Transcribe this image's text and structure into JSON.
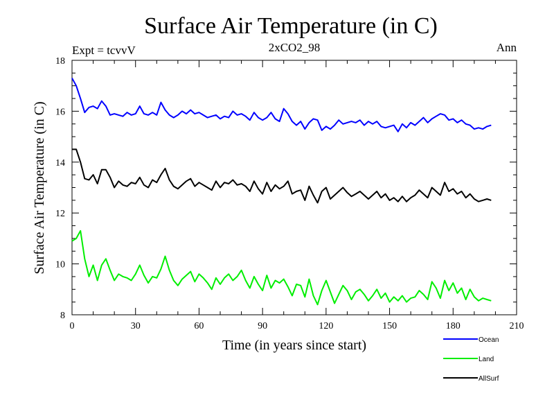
{
  "header": {
    "title": "Surface Air Temperature (in C)",
    "left": "Expt = tcvvV",
    "center": "2xCO2_98",
    "right": "Ann"
  },
  "chart_data": {
    "type": "line",
    "title": "Surface Air Temperature (in C)",
    "xlabel": "Time (in years since start)",
    "ylabel": "Surface Air Temperature (in C)",
    "xlim": [
      0,
      210
    ],
    "ylim": [
      8,
      18
    ],
    "xticks": [
      "0",
      "30",
      "60",
      "90",
      "120",
      "150",
      "180",
      "210"
    ],
    "yticks": [
      "8",
      "10",
      "12",
      "14",
      "16",
      "18"
    ],
    "grid": false,
    "legend_position": "bottom-right",
    "series": [
      {
        "name": "Ocean",
        "color": "#0000ff",
        "x": [
          0,
          2,
          4,
          6,
          8,
          10,
          12,
          14,
          16,
          18,
          20,
          22,
          24,
          26,
          28,
          30,
          32,
          34,
          36,
          38,
          40,
          42,
          44,
          46,
          48,
          50,
          52,
          54,
          56,
          58,
          60,
          62,
          64,
          66,
          68,
          70,
          72,
          74,
          76,
          78,
          80,
          82,
          84,
          86,
          88,
          90,
          92,
          94,
          96,
          98,
          100,
          102,
          104,
          106,
          108,
          110,
          112,
          114,
          116,
          118,
          120,
          122,
          124,
          126,
          128,
          130,
          132,
          134,
          136,
          138,
          140,
          142,
          144,
          146,
          148,
          150,
          152,
          154,
          156,
          158,
          160,
          162,
          164,
          166,
          168,
          170,
          172,
          174,
          176,
          178,
          180,
          182,
          184,
          186,
          188,
          190,
          192,
          194,
          196,
          198
        ],
        "y": [
          17.3,
          17.0,
          16.5,
          15.95,
          16.15,
          16.2,
          16.1,
          16.4,
          16.2,
          15.85,
          15.9,
          15.85,
          15.8,
          15.95,
          15.85,
          15.9,
          16.2,
          15.9,
          15.85,
          15.95,
          15.85,
          16.35,
          16.05,
          15.85,
          15.75,
          15.85,
          16.0,
          15.9,
          16.05,
          15.9,
          15.95,
          15.85,
          15.75,
          15.8,
          15.85,
          15.7,
          15.8,
          15.75,
          16.0,
          15.85,
          15.9,
          15.8,
          15.65,
          15.95,
          15.75,
          15.65,
          15.75,
          15.95,
          15.7,
          15.6,
          16.1,
          15.9,
          15.6,
          15.45,
          15.6,
          15.3,
          15.55,
          15.7,
          15.65,
          15.25,
          15.4,
          15.3,
          15.45,
          15.65,
          15.5,
          15.55,
          15.6,
          15.55,
          15.65,
          15.45,
          15.6,
          15.5,
          15.6,
          15.4,
          15.35,
          15.4,
          15.45,
          15.2,
          15.5,
          15.35,
          15.55,
          15.45,
          15.6,
          15.75,
          15.55,
          15.7,
          15.8,
          15.9,
          15.85,
          15.65,
          15.7,
          15.55,
          15.65,
          15.5,
          15.45,
          15.3,
          15.35,
          15.3,
          15.4,
          15.45
        ]
      },
      {
        "name": "Land",
        "color": "#00ee00",
        "x": [
          0,
          2,
          4,
          6,
          8,
          10,
          12,
          14,
          16,
          18,
          20,
          22,
          24,
          26,
          28,
          30,
          32,
          34,
          36,
          38,
          40,
          42,
          44,
          46,
          48,
          50,
          52,
          54,
          56,
          58,
          60,
          62,
          64,
          66,
          68,
          70,
          72,
          74,
          76,
          78,
          80,
          82,
          84,
          86,
          88,
          90,
          92,
          94,
          96,
          98,
          100,
          102,
          104,
          106,
          108,
          110,
          112,
          114,
          116,
          118,
          120,
          122,
          124,
          126,
          128,
          130,
          132,
          134,
          136,
          138,
          140,
          142,
          144,
          146,
          148,
          150,
          152,
          154,
          156,
          158,
          160,
          162,
          164,
          166,
          168,
          170,
          172,
          174,
          176,
          178,
          180,
          182,
          184,
          186,
          188,
          190,
          192,
          194,
          196,
          198
        ],
        "y": [
          10.9,
          11.0,
          11.3,
          10.2,
          9.5,
          9.95,
          9.35,
          9.95,
          10.2,
          9.75,
          9.35,
          9.6,
          9.5,
          9.45,
          9.35,
          9.6,
          9.95,
          9.55,
          9.25,
          9.5,
          9.45,
          9.8,
          10.3,
          9.75,
          9.35,
          9.15,
          9.4,
          9.55,
          9.7,
          9.3,
          9.6,
          9.45,
          9.25,
          9.0,
          9.45,
          9.2,
          9.45,
          9.6,
          9.35,
          9.5,
          9.75,
          9.35,
          9.05,
          9.5,
          9.2,
          8.95,
          9.55,
          9.05,
          9.35,
          9.25,
          9.4,
          9.1,
          8.75,
          9.2,
          9.15,
          8.7,
          9.4,
          8.75,
          8.4,
          8.95,
          9.35,
          8.9,
          8.45,
          8.8,
          9.15,
          8.95,
          8.6,
          8.9,
          9.0,
          8.8,
          8.55,
          8.75,
          9.0,
          8.65,
          8.85,
          8.5,
          8.7,
          8.55,
          8.75,
          8.5,
          8.65,
          8.7,
          8.95,
          8.8,
          8.6,
          9.3,
          9.05,
          8.65,
          9.35,
          8.95,
          9.25,
          8.85,
          9.05,
          8.6,
          9.0,
          8.7,
          8.55,
          8.65,
          8.6,
          8.55
        ]
      },
      {
        "name": "AllSurf",
        "color": "#000000",
        "x": [
          0,
          2,
          4,
          6,
          8,
          10,
          12,
          14,
          16,
          18,
          20,
          22,
          24,
          26,
          28,
          30,
          32,
          34,
          36,
          38,
          40,
          42,
          44,
          46,
          48,
          50,
          52,
          54,
          56,
          58,
          60,
          62,
          64,
          66,
          68,
          70,
          72,
          74,
          76,
          78,
          80,
          82,
          84,
          86,
          88,
          90,
          92,
          94,
          96,
          98,
          100,
          102,
          104,
          106,
          108,
          110,
          112,
          114,
          116,
          118,
          120,
          122,
          124,
          126,
          128,
          130,
          132,
          134,
          136,
          138,
          140,
          142,
          144,
          146,
          148,
          150,
          152,
          154,
          156,
          158,
          160,
          162,
          164,
          166,
          168,
          170,
          172,
          174,
          176,
          178,
          180,
          182,
          184,
          186,
          188,
          190,
          192,
          194,
          196,
          198
        ],
        "y": [
          14.5,
          14.5,
          14.0,
          13.35,
          13.3,
          13.5,
          13.15,
          13.7,
          13.7,
          13.4,
          13.0,
          13.25,
          13.1,
          13.05,
          13.2,
          13.15,
          13.4,
          13.1,
          13.0,
          13.3,
          13.2,
          13.5,
          13.75,
          13.3,
          13.05,
          12.95,
          13.1,
          13.25,
          13.35,
          13.05,
          13.2,
          13.1,
          13.0,
          12.9,
          13.25,
          13.0,
          13.2,
          13.15,
          13.3,
          13.1,
          13.15,
          13.05,
          12.85,
          13.25,
          12.95,
          12.75,
          13.2,
          12.85,
          13.1,
          12.95,
          13.05,
          13.25,
          12.75,
          12.85,
          12.9,
          12.5,
          13.05,
          12.7,
          12.4,
          12.85,
          13.0,
          12.55,
          12.7,
          12.85,
          13.0,
          12.8,
          12.65,
          12.75,
          12.85,
          12.7,
          12.55,
          12.7,
          12.85,
          12.6,
          12.75,
          12.5,
          12.6,
          12.45,
          12.65,
          12.45,
          12.6,
          12.7,
          12.9,
          12.75,
          12.6,
          13.0,
          12.85,
          12.7,
          13.2,
          12.85,
          12.95,
          12.75,
          12.85,
          12.6,
          12.75,
          12.55,
          12.45,
          12.5,
          12.55,
          12.5
        ]
      }
    ]
  }
}
